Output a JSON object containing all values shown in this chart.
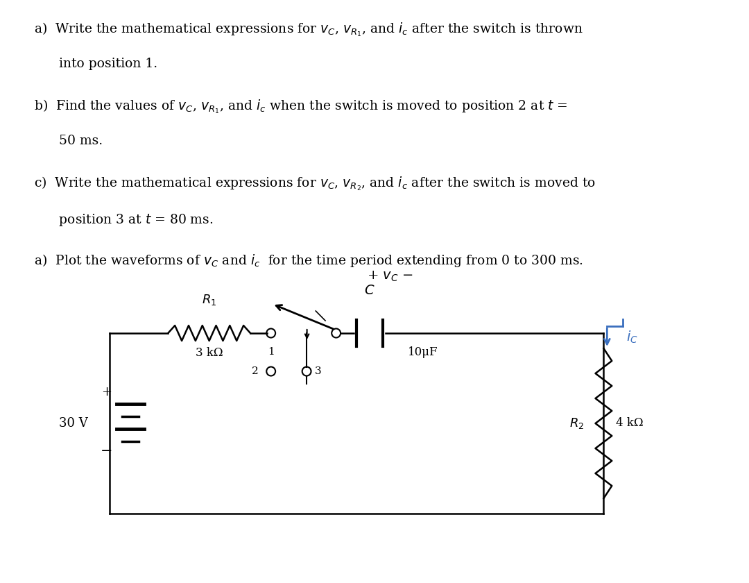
{
  "background_color": "#ffffff",
  "text_color": "#000000",
  "fig_width": 10.8,
  "fig_height": 8.4,
  "lines_a1": "a)  Write the mathematical expressions for $v_C$, $v_{R_1}$, and $i_c$ after the switch is thrown",
  "lines_a2": "      into position 1.",
  "lines_b1": "b)  Find the values of $v_C$, $v_{R_1}$, and $i_c$ when the switch is moved to position 2 at $t$ =",
  "lines_b2": "      50 ms.",
  "lines_c1": "c)  Write the mathematical expressions for $v_C$, $v_{R_2}$, and $i_c$ after the switch is moved to",
  "lines_c2": "      position 3 at $t$ = 80 ms.",
  "lines_d1": "a)  Plot the waveforms of $v_C$ and $i_c$  for the time period extending from 0 to 300 ms.",
  "blue_color": "#3B6FBE",
  "black_color": "#000000"
}
